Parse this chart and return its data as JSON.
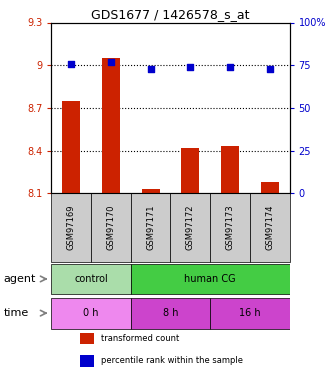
{
  "title": "GDS1677 / 1426578_s_at",
  "samples": [
    "GSM97169",
    "GSM97170",
    "GSM97171",
    "GSM97172",
    "GSM97173",
    "GSM97174"
  ],
  "bar_values": [
    8.75,
    9.05,
    8.13,
    8.42,
    8.43,
    8.18
  ],
  "dot_values": [
    76,
    77,
    73,
    74,
    74,
    73
  ],
  "ylim_left": [
    8.1,
    9.3
  ],
  "ylim_right": [
    0,
    100
  ],
  "yticks_left": [
    8.1,
    8.4,
    8.7,
    9.0,
    9.3
  ],
  "yticks_right": [
    0,
    25,
    50,
    75,
    100
  ],
  "ytick_labels_left": [
    "8.1",
    "8.4",
    "8.7",
    "9",
    "9.3"
  ],
  "ytick_labels_right": [
    "0",
    "25",
    "50",
    "75",
    "100%"
  ],
  "hlines": [
    9.0,
    8.7,
    8.4
  ],
  "bar_color": "#cc2200",
  "dot_color": "#0000cc",
  "bar_bottom": 8.1,
  "sample_box_color": "#cccccc",
  "agent_labels": [
    {
      "label": "control",
      "span": [
        0,
        2
      ],
      "color": "#aaddaa"
    },
    {
      "label": "human CG",
      "span": [
        2,
        6
      ],
      "color": "#44cc44"
    }
  ],
  "time_labels": [
    {
      "label": "0 h",
      "span": [
        0,
        2
      ],
      "color": "#ee88ee"
    },
    {
      "label": "8 h",
      "span": [
        2,
        4
      ],
      "color": "#cc44cc"
    },
    {
      "label": "16 h",
      "span": [
        4,
        6
      ],
      "color": "#cc44cc"
    }
  ],
  "legend_items": [
    {
      "label": "transformed count",
      "color": "#cc2200"
    },
    {
      "label": "percentile rank within the sample",
      "color": "#0000cc"
    }
  ],
  "left_label_color": "#cc2200",
  "right_label_color": "#0000cc",
  "agent_row_label": "agent",
  "time_row_label": "time"
}
